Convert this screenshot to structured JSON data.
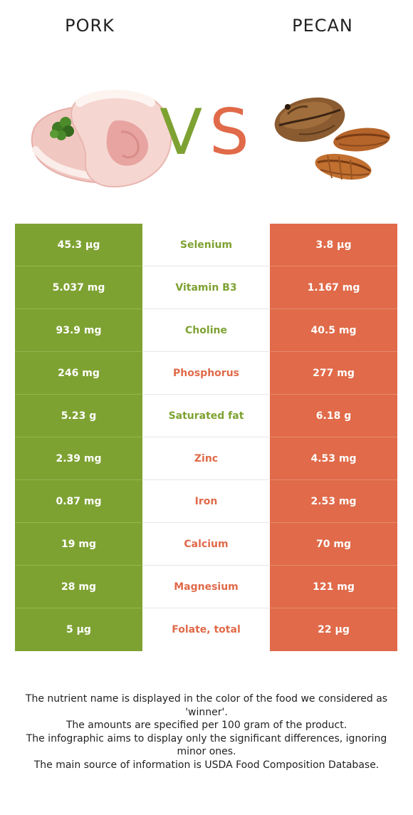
{
  "header": {
    "left_title": "PORK",
    "right_title": "PECAN",
    "vs_v": "V",
    "vs_s": "S"
  },
  "colors": {
    "pork": "#7ea232",
    "pecan": "#e06a49"
  },
  "images": {
    "left": "pork-chop-illustration",
    "right": "pecan-illustration"
  },
  "rows": [
    {
      "left": "45.3 µg",
      "nutrient": "Selenium",
      "right": "3.8 µg",
      "winner": "pork"
    },
    {
      "left": "5.037 mg",
      "nutrient": "Vitamin B3",
      "right": "1.167 mg",
      "winner": "pork"
    },
    {
      "left": "93.9 mg",
      "nutrient": "Choline",
      "right": "40.5 mg",
      "winner": "pork"
    },
    {
      "left": "246 mg",
      "nutrient": "Phosphorus",
      "right": "277 mg",
      "winner": "pecan"
    },
    {
      "left": "5.23 g",
      "nutrient": "Saturated fat",
      "right": "6.18 g",
      "winner": "pork"
    },
    {
      "left": "2.39 mg",
      "nutrient": "Zinc",
      "right": "4.53 mg",
      "winner": "pecan"
    },
    {
      "left": "0.87 mg",
      "nutrient": "Iron",
      "right": "2.53 mg",
      "winner": "pecan"
    },
    {
      "left": "19 mg",
      "nutrient": "Calcium",
      "right": "70 mg",
      "winner": "pecan"
    },
    {
      "left": "28 mg",
      "nutrient": "Magnesium",
      "right": "121 mg",
      "winner": "pecan"
    },
    {
      "left": "5 µg",
      "nutrient": "Folate, total",
      "right": "22 µg",
      "winner": "pecan"
    }
  ],
  "footer": [
    "The nutrient name is displayed in the color of the food we considered as 'winner'.",
    "The amounts are specified per 100 gram of the product.",
    "The infographic aims to display only the significant differences, ignoring minor ones.",
    "The main source of information is USDA Food Composition Database."
  ]
}
